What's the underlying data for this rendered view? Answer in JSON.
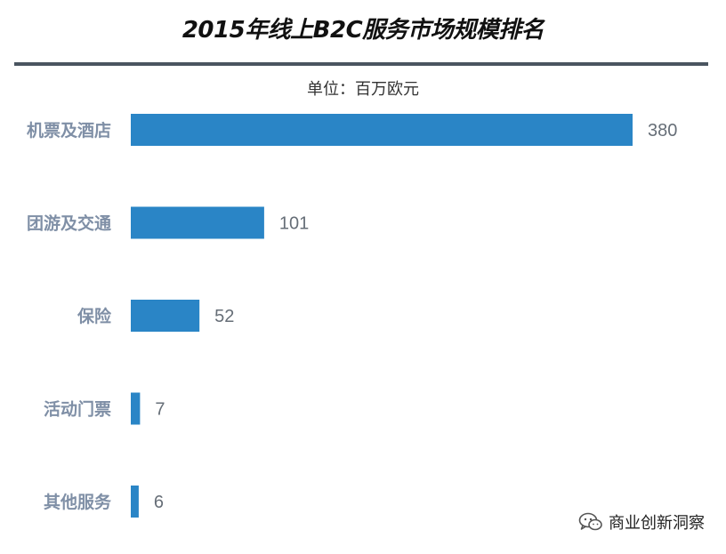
{
  "header": {
    "title": "2015年线上B2C服务市场规模排名",
    "unit": "单位：百万欧元"
  },
  "watermark": {
    "icon": "wechat-icon",
    "text": "商业创新洞察"
  },
  "colors": {
    "bar": "#2a85c6",
    "category_label": "#7f8fa6",
    "value_label": "#666e77",
    "rule": "#4a5560"
  },
  "chart_data": {
    "type": "bar",
    "orientation": "horizontal",
    "title": "2015年线上B2C服务市场规模排名",
    "subtitle": "单位：百万欧元",
    "categories": [
      "机票及酒店",
      "团游及交通",
      "保险",
      "活动门票",
      "其他服务"
    ],
    "values": [
      380,
      101,
      52,
      7,
      6
    ],
    "xlim": [
      0,
      380
    ],
    "grid": false,
    "legend": "none",
    "data_labels": true
  }
}
